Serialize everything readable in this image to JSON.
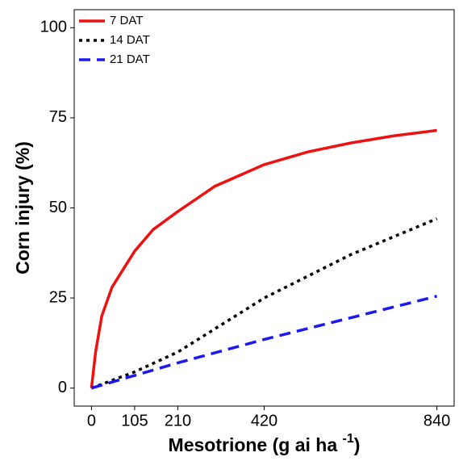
{
  "chart_data": {
    "type": "line",
    "x_label": "Mesotrione (g ai ha",
    "x_label_sup": "-1",
    "x_label_end": ")",
    "y_label": "Corn injury (%)",
    "xlim": [
      -42,
      882
    ],
    "ylim": [
      -5,
      105
    ],
    "xticks": [
      0,
      105,
      210,
      420,
      840
    ],
    "yticks": [
      0,
      25,
      50,
      75,
      100
    ],
    "legend": "top-left",
    "series": [
      {
        "name": "7 DAT",
        "color": "#ee1111",
        "dash": "solid",
        "x": [
          0,
          10,
          25,
          50,
          105,
          150,
          210,
          300,
          420,
          525,
          630,
          735,
          840
        ],
        "values": [
          0,
          10,
          20,
          28,
          38,
          44,
          49,
          56,
          62,
          65.5,
          68,
          70,
          71.5
        ]
      },
      {
        "name": "14 DAT",
        "color": "#000000",
        "dash": "dotted",
        "x": [
          0,
          105,
          210,
          315,
          420,
          525,
          630,
          735,
          840
        ],
        "values": [
          0,
          4.5,
          10,
          17.5,
          25,
          31,
          37,
          42,
          47
        ]
      },
      {
        "name": "21 DAT",
        "color": "#1a1aee",
        "dash": "dashed",
        "x": [
          0,
          105,
          210,
          420,
          630,
          840
        ],
        "values": [
          0,
          3.5,
          7,
          13.5,
          19.5,
          25.5
        ]
      }
    ]
  }
}
